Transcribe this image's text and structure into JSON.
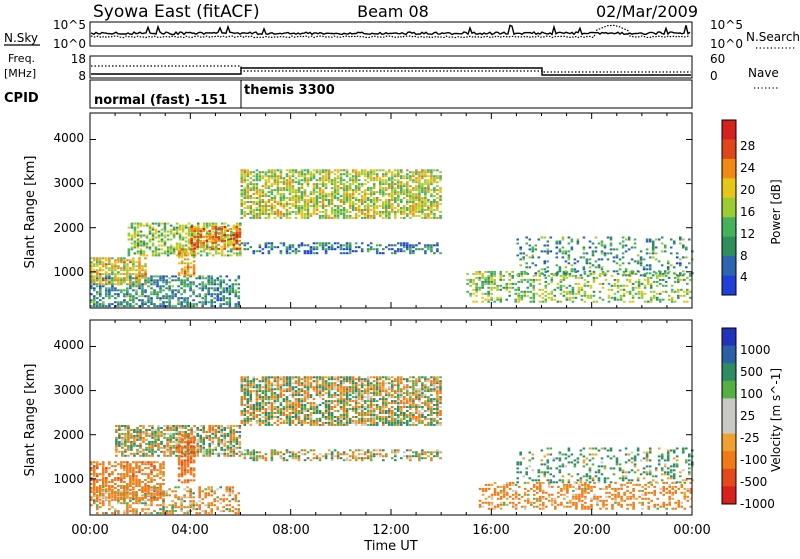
{
  "header": {
    "station": "Syowa East (fitACF)",
    "beam": "Beam 08",
    "date": "02/Mar/2009"
  },
  "nsky_panel": {
    "left_label": "N.Sky",
    "right_label": "N.Search",
    "ticks_left": [
      "10^5",
      "10^0"
    ],
    "ticks_right": [
      "10^5",
      "10^0"
    ]
  },
  "freq_panel": {
    "left_label_1": "Freq.",
    "left_label_2": "[MHz]",
    "right_label": "Nave",
    "ticks_left": [
      "18",
      "8"
    ],
    "ticks_right": [
      "60",
      "0"
    ]
  },
  "cpid_panel": {
    "label": "CPID",
    "segments": [
      {
        "label": "normal (fast) -151",
        "start_hour": 0,
        "end_hour": 6
      },
      {
        "label": "themis 3300",
        "start_hour": 6,
        "end_hour": 24
      }
    ]
  },
  "time_axis": {
    "title": "Time UT",
    "ticks": [
      "00:00",
      "04:00",
      "08:00",
      "12:00",
      "16:00",
      "20:00",
      "00:00"
    ]
  },
  "colors": {
    "power_scale": [
      "#1f3fd8",
      "#2c66b0",
      "#2e8f5c",
      "#45b15a",
      "#9acd32",
      "#e6c619",
      "#f08a12",
      "#e0451b",
      "#d61f1f"
    ],
    "velocity_scale": [
      "#2233bb",
      "#2b5fa8",
      "#2d8c62",
      "#55b044",
      "#c9cac6",
      "#c9cac6",
      "#f0a030",
      "#ef7a16",
      "#e3491b",
      "#d91e1e"
    ]
  },
  "chart_data": [
    {
      "type": "heatmap",
      "title": "Power",
      "ylabel": "Slant Range [km]",
      "xlabel": "",
      "x_range_hours": [
        0,
        24
      ],
      "ylim": [
        180,
        4600
      ],
      "y_ticks": [
        "1000",
        "2000",
        "3000",
        "4000"
      ],
      "colorbar": {
        "label": "Power [dB]",
        "range": [
          0,
          30
        ],
        "ticks": [
          "4",
          "8",
          "12",
          "16",
          "20",
          "24",
          "28"
        ]
      },
      "regions": [
        {
          "t0": 0.0,
          "t1": 6.0,
          "r0": 200,
          "r1": 900,
          "level": 8,
          "density": 0.55
        },
        {
          "t0": 0.0,
          "t1": 2.2,
          "r0": 700,
          "r1": 1300,
          "level": 18,
          "density": 0.7
        },
        {
          "t0": 1.5,
          "t1": 6.0,
          "r0": 1350,
          "r1": 2100,
          "level": 14,
          "density": 0.6
        },
        {
          "t0": 4.0,
          "t1": 6.0,
          "r0": 1500,
          "r1": 2000,
          "level": 22,
          "density": 0.7
        },
        {
          "t0": 3.5,
          "t1": 4.2,
          "r0": 900,
          "r1": 1500,
          "level": 20,
          "density": 0.6
        },
        {
          "t0": 6.0,
          "t1": 14.0,
          "r0": 2200,
          "r1": 3300,
          "level": 16,
          "density": 0.7
        },
        {
          "t0": 6.0,
          "t1": 14.0,
          "r0": 1400,
          "r1": 1650,
          "level": 6,
          "density": 0.45
        },
        {
          "t0": 15.0,
          "t1": 24.0,
          "r0": 300,
          "r1": 1000,
          "level": 14,
          "density": 0.4
        },
        {
          "t0": 17.0,
          "t1": 24.0,
          "r0": 900,
          "r1": 1800,
          "level": 9,
          "density": 0.25
        }
      ]
    },
    {
      "type": "heatmap",
      "title": "Velocity",
      "ylabel": "Slant Range [km]",
      "xlabel": "Time UT",
      "x_range_hours": [
        0,
        24
      ],
      "ylim": [
        180,
        4600
      ],
      "y_ticks": [
        "1000",
        "2000",
        "3000",
        "4000"
      ],
      "colorbar": {
        "label": "Velocity [m s^-1]",
        "range": [
          -1200,
          1200
        ],
        "ticks": [
          "1000",
          "500",
          "100",
          "25",
          "-25",
          "-100",
          "-500",
          "-1000"
        ]
      },
      "regions": [
        {
          "t0": 0.0,
          "t1": 3.0,
          "r0": 500,
          "r1": 1400,
          "level": -300,
          "density": 0.6
        },
        {
          "t0": 0.0,
          "t1": 6.0,
          "r0": 200,
          "r1": 800,
          "level": -120,
          "density": 0.45
        },
        {
          "t0": 1.0,
          "t1": 6.0,
          "r0": 1500,
          "r1": 2200,
          "level": 0,
          "density": 0.7
        },
        {
          "t0": 3.5,
          "t1": 4.2,
          "r0": 900,
          "r1": 2000,
          "level": -400,
          "density": 0.7
        },
        {
          "t0": 6.0,
          "t1": 14.0,
          "r0": 2200,
          "r1": 3300,
          "level": 0,
          "density": 0.75
        },
        {
          "t0": 6.0,
          "t1": 14.0,
          "r0": 1400,
          "r1": 1650,
          "level": 0,
          "density": 0.45
        },
        {
          "t0": 15.5,
          "t1": 24.0,
          "r0": 300,
          "r1": 900,
          "level": -200,
          "density": 0.4
        },
        {
          "t0": 17.0,
          "t1": 24.0,
          "r0": 900,
          "r1": 1700,
          "level": 150,
          "density": 0.3
        }
      ]
    }
  ]
}
